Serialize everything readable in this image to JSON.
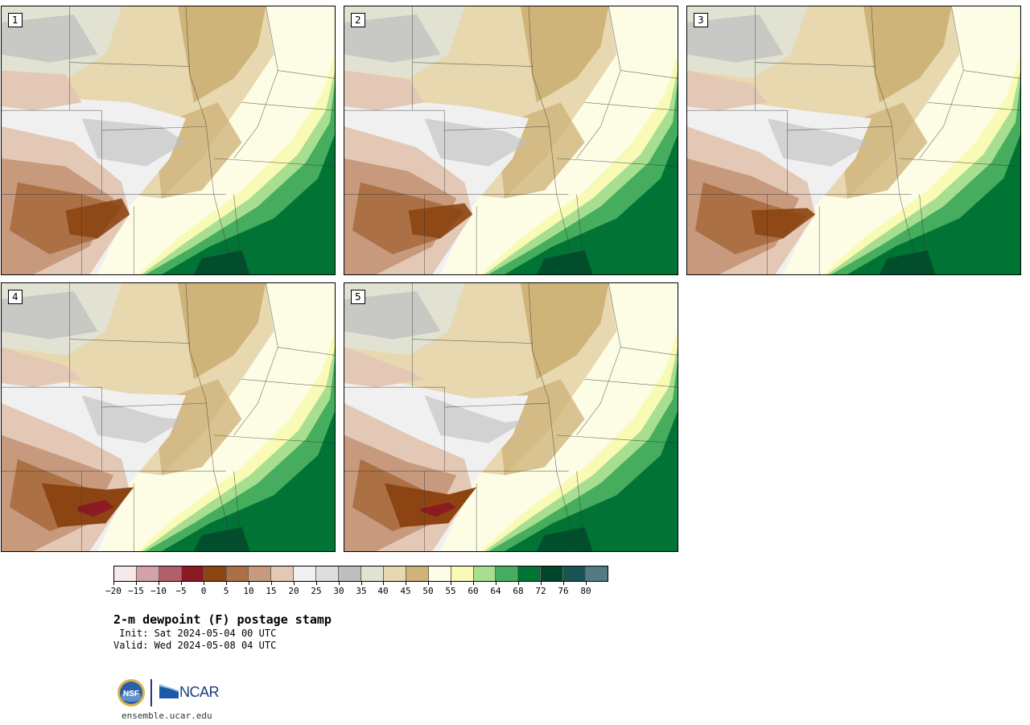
{
  "panels": [
    {
      "label": "1",
      "variant": 0
    },
    {
      "label": "2",
      "variant": 1
    },
    {
      "label": "3",
      "variant": 2
    },
    {
      "label": "4",
      "variant": 3
    },
    {
      "label": "5",
      "variant": 4
    }
  ],
  "colorbar": {
    "colors": [
      "#f5e9ea",
      "#d3a1a7",
      "#b0606a",
      "#8b1a22",
      "#8c4512",
      "#ac7045",
      "#c79a7e",
      "#e4c8b6",
      "#f0f0f0",
      "#dedede",
      "#bebebe",
      "#e2e2d2",
      "#e7d8b0",
      "#cfb47a",
      "#fdfde6",
      "#f8fab6",
      "#a8de8f",
      "#45ad5d",
      "#017334",
      "#01452a",
      "#1b5552",
      "#537b83"
    ],
    "tick_labels": [
      "−20",
      "−15",
      "−10",
      "−5",
      "0",
      "5",
      "10",
      "15",
      "20",
      "25",
      "30",
      "35",
      "40",
      "45",
      "50",
      "55",
      "60",
      "64",
      "68",
      "72",
      "76",
      "80"
    ]
  },
  "title": "2-m dewpoint (F) postage stamp",
  "init_text": " Init: Sat 2024-05-04 00 UTC",
  "valid_text": "Valid: Wed 2024-05-08 04 UTC",
  "logos": {
    "nsf": "NSF",
    "ncar": "NCAR"
  },
  "site": "ensemble.ucar.edu"
}
